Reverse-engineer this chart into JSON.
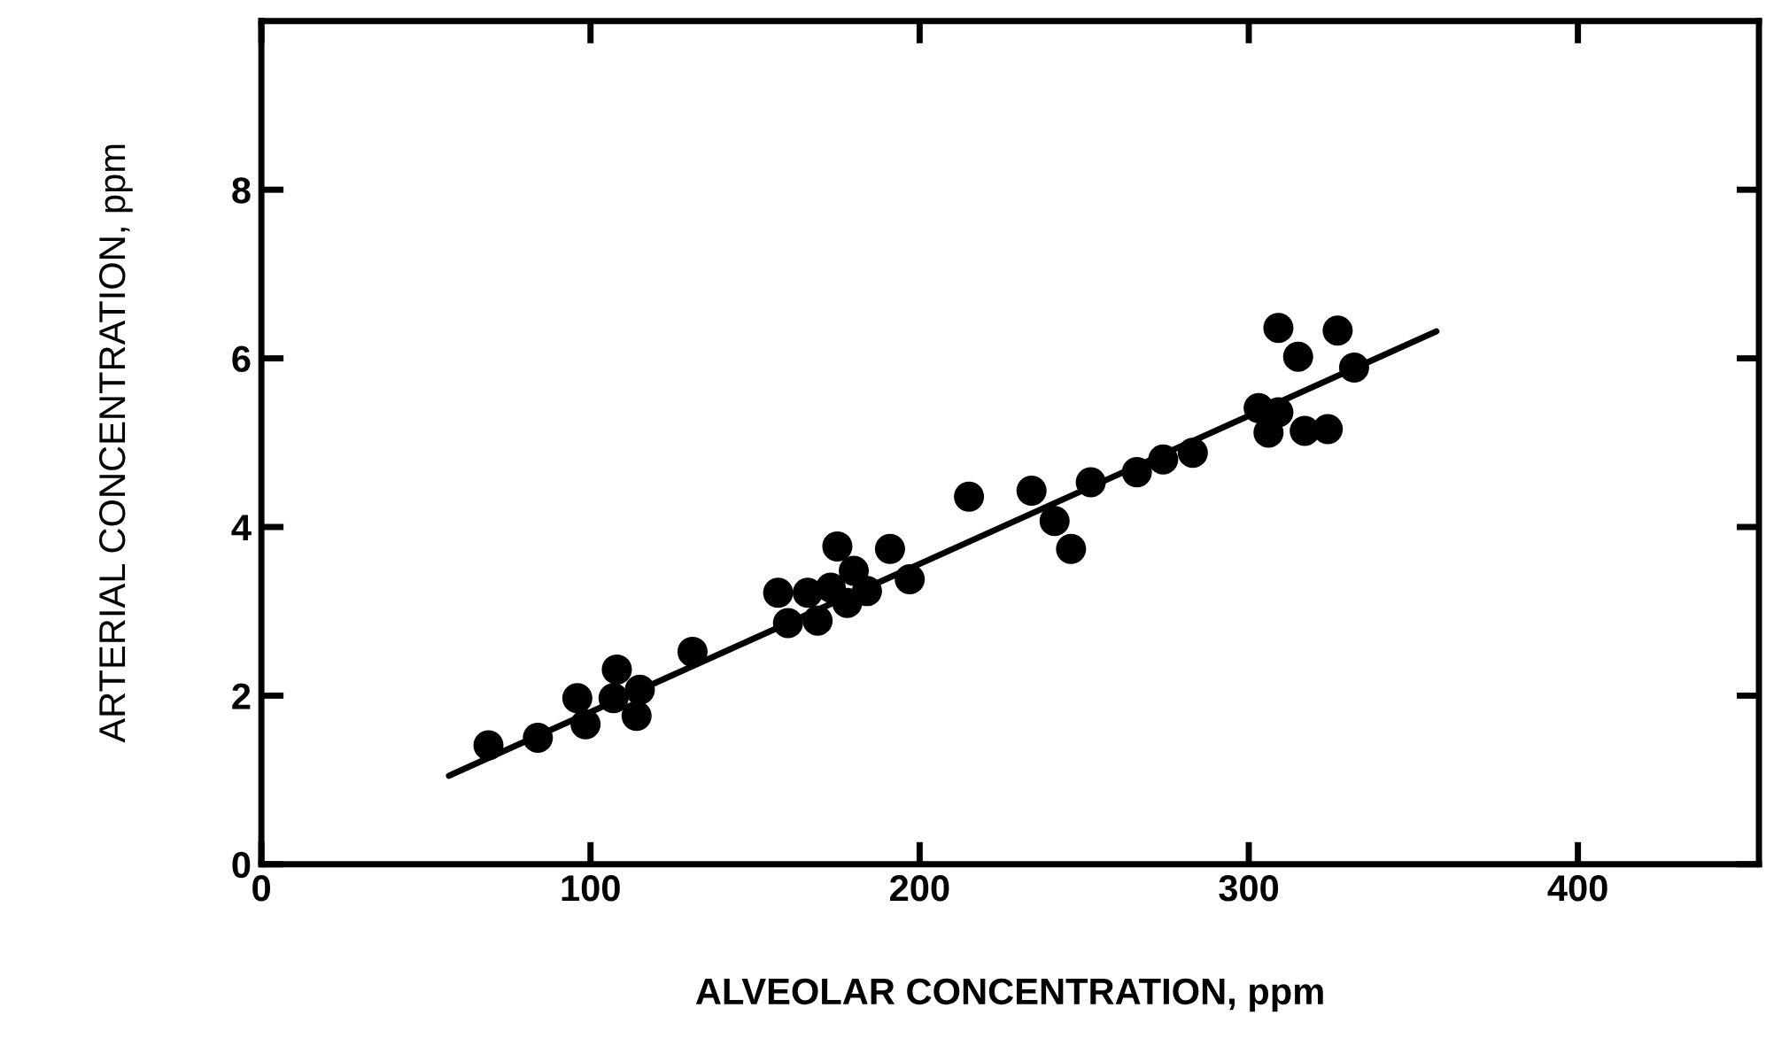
{
  "chart_data": {
    "type": "scatter",
    "xlabel": "ALVEOLAR CONCENTRATION, ppm",
    "ylabel": "ARTERIAL CONCENTRATION, ppm",
    "xlim": [
      0,
      455
    ],
    "ylim": [
      0,
      10
    ],
    "xticks": [
      0,
      100,
      200,
      300,
      400
    ],
    "yticks": [
      0,
      2,
      4,
      6,
      8
    ],
    "grid": false,
    "legend": false,
    "series": [
      {
        "marker": "circle",
        "color": "#000000",
        "x": [
          69,
          84,
          96,
          98.5,
          108,
          107,
          115,
          114,
          131,
          157,
          160,
          166,
          169,
          173,
          175,
          180,
          178,
          184,
          191,
          197,
          215,
          234,
          241,
          246,
          252,
          266,
          274,
          283,
          303,
          309,
          306,
          309,
          315,
          317,
          324,
          327,
          332
        ],
        "values": [
          1.41,
          1.5,
          1.97,
          1.66,
          2.31,
          1.97,
          2.07,
          1.76,
          2.52,
          3.22,
          2.86,
          3.22,
          2.89,
          3.28,
          3.77,
          3.48,
          3.1,
          3.24,
          3.74,
          3.38,
          4.36,
          4.43,
          4.07,
          3.74,
          4.53,
          4.65,
          4.8,
          4.88,
          5.41,
          5.36,
          5.12,
          6.36,
          6.02,
          5.14,
          5.16,
          6.33,
          5.89
        ]
      },
      {
        "type": "line",
        "color": "#000000",
        "x": [
          57,
          357
        ],
        "values": [
          1.05,
          6.32
        ]
      }
    ]
  }
}
